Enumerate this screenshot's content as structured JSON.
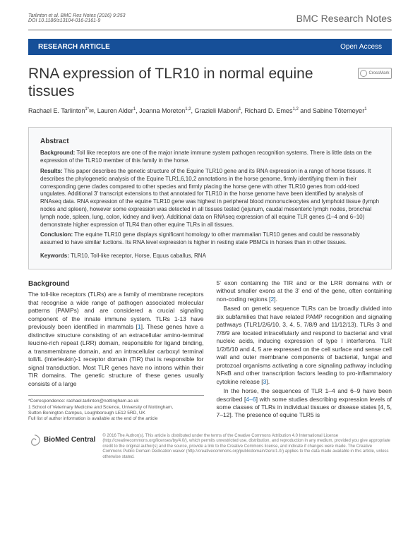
{
  "header": {
    "citation_line1": "Tarlinton et al. BMC Res Notes (2016) 9:353",
    "citation_line2": "DOI 10.1186/s13104-016-2161-9",
    "journal": "BMC Research Notes"
  },
  "banner": {
    "left": "RESEARCH ARTICLE",
    "right": "Open Access"
  },
  "title": "RNA expression of TLR10 in normal equine tissues",
  "crossmark": "CrossMark",
  "authors_html": "Rachael E. Tarlinton<sup>1*</sup><span class='envelope'>✉</span>, Lauren Alder<sup>1</sup>, Joanna Moreton<sup>1,2</sup>, Grazieli Maboni<sup>1</sup>, Richard D. Emes<sup>1,2</sup> and Sabine Tötemeyer<sup>1</sup>",
  "abstract": {
    "title": "Abstract",
    "background_label": "Background:",
    "background": " Toll like receptors are one of the major innate immune system pathogen recognition systems. There is little data on the expression of the TLR10 member of this family in the horse.",
    "results_label": "Results:",
    "results": " This paper describes the genetic structure of the Equine TLR10 gene and its RNA expression in a range of horse tissues. It describes the phylogenetic analysis of the Equine TLR1,6,10,2 annotations in the horse genome, firmly identifying them in their corresponding gene clades compared to other species and firmly placing the horse gene with other TLR10 genes from odd-toed ungulates. Additional 3' transcript extensions to that annotated for TLR10 in the horse genome have been identified by analysis of RNAseq data. RNA expression of the equine TLR10 gene was highest in peripheral blood mononucleocytes and lymphoid tissue (lymph nodes and spleen), however some expression was detected in all tissues tested (jejunum, caudal mesenteric lymph nodes, bronchial lymph node, spleen, lung, colon, kidney and liver). Additional data on RNAseq expression of all equine TLR genes (1–4 and 6–10) demonstrate higher expression of TLR4 than other equine TLRs in all tissues.",
    "conclusion_label": "Conclusion:",
    "conclusion": " The equine TLR10 gene displays significant homology to other mammalian TLR10 genes and could be reasonably assumed to have similar fuctions. Its RNA level expression is higher in resting state PBMCs in horses than in other tissues.",
    "keywords_label": "Keywords:",
    "keywords": " TLR10, Toll-like receptor, Horse, Equus caballus, RNA"
  },
  "body": {
    "background_heading": "Background",
    "col1_p1": "The toll-like receptors (TLRs) are a family of membrane receptors that recognise a wide range of pathogen associated molecular patterns (PAMPs) and are considered a crucial signaling component of the innate immune system. TLRs 1-13 have previously been identified in mammals [1]. These genes have a distinctive structure consisting of an extracellular amino-terminal leucine-rich repeat (LRR) domain, responsible for ligand binding, a transmembrane domain, and an intracellular carboxyl terminal toll/IL (interleukin)-1 receptor domain (TIR) that is responsible for signal transduction. Most TLR genes have no introns within their TIR domains. The genetic structure of these genes usually consists of a large",
    "col2_p1": "5' exon containing the TIR and or the LRR domains with or without smaller exons at the 3' end of the gene, often containing non-coding regions [2].",
    "col2_p2": "Based on genetic sequence TLRs can be broadly divided into six subfamilies that have related PAMP recognition and signaling pathways (TLR1/2/6/10, 3, 4, 5, 7/8/9 and 11/12/13). TLRs 3 and 7/8/9 are located intracellularly and respond to bacterial and viral nucleic acids, inducing expression of type I interferons. TLR 1/2/6/10 and 4, 5 are expressed on the cell surface and sense cell wall and outer membrane components of bacterial, fungal and protozoal organisms activating a core signaling pathway including NFκB and other transcription factors leading to pro-inflammatory cytokine release [3].",
    "col2_p3": "In the horse, the sequences of TLR 1–4 and 6–9 have been described [4–6] with some studies describing expression levels of some classes of TLRs in individual tissues or disease states [4, 5, 7–12]. The presence of equine TLR5 is"
  },
  "footnote": {
    "line1": "*Correspondence: rachael.tarlinton@nottingham.ac.uk",
    "line2": "1 School of Veterinary Medicine and Science, University of Nottingham,",
    "line3": "Sutton Bonington Campus, Loughborough LE12 5RD, UK",
    "line4": "Full list of author information is available at the end of the article"
  },
  "footer": {
    "bmc": "BioMed Central",
    "license": "© 2016 The Author(s). This article is distributed under the terms of the Creative Commons Attribution 4.0 International License (http://creativecommons.org/licenses/by/4.0/), which permits unrestricted use, distribution, and reproduction in any medium, provided you give appropriate credit to the original author(s) and the source, provide a link to the Creative Commons license, and indicate if changes were made. The Creative Commons Public Domain Dedication waiver (http://creativecommons.org/publicdomain/zero/1.0/) applies to the data made available in this article, unless otherwise stated."
  },
  "colors": {
    "banner_bg": "#164f98",
    "link": "#1a6fb5",
    "abstract_bg": "#f8f9fa"
  }
}
